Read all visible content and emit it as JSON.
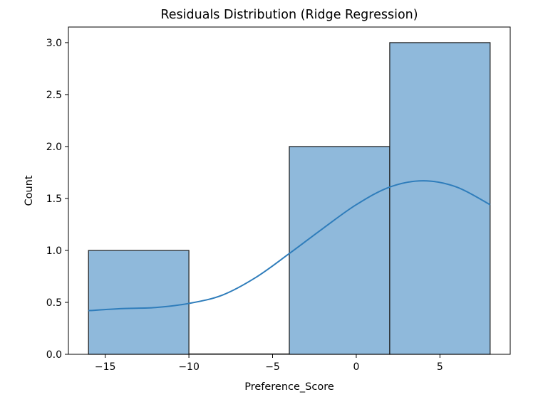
{
  "chart_data": {
    "type": "bar",
    "title": "Residuals Distribution (Ridge Regression)",
    "xlabel": "Preference_Score",
    "ylabel": "Count",
    "xlim": [
      -17.2,
      9.2
    ],
    "ylim": [
      0,
      3.15
    ],
    "x_ticks": [
      -15,
      -10,
      -5,
      0,
      5
    ],
    "x_tick_labels": [
      "−15",
      "−10",
      "−5",
      "0",
      "5"
    ],
    "y_ticks": [
      0,
      0.5,
      1,
      1.5,
      2,
      2.5,
      3
    ],
    "y_tick_labels": [
      "0.0",
      "0.5",
      "1.0",
      "1.5",
      "2.0",
      "2.5",
      "3.0"
    ],
    "bins": [
      {
        "start": -16,
        "end": -10,
        "count": 1
      },
      {
        "start": -10,
        "end": -4,
        "count": 0
      },
      {
        "start": -4,
        "end": 2,
        "count": 2
      },
      {
        "start": 2,
        "end": 8,
        "count": 3
      }
    ],
    "kde": {
      "x": [
        -16,
        -14,
        -12,
        -10,
        -8,
        -6,
        -4,
        -2,
        0,
        2,
        4,
        6,
        8
      ],
      "y": [
        0.42,
        0.44,
        0.45,
        0.49,
        0.57,
        0.74,
        0.97,
        1.21,
        1.44,
        1.61,
        1.67,
        1.61,
        1.44
      ]
    },
    "grid": false,
    "colors": {
      "bar_fill": "#8fb9db",
      "bar_edge": "#1a1a1a",
      "kde_line": "#2f7dbb"
    }
  }
}
